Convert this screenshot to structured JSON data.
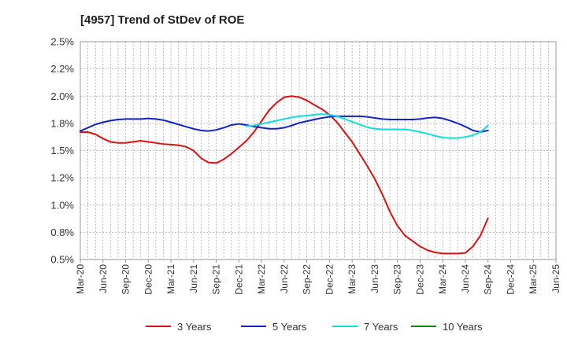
{
  "chart_data": {
    "type": "line",
    "title": "[4957]  Trend of StDev of ROE",
    "xlabel": "",
    "ylabel": "",
    "ylim": [
      0.5,
      2.5
    ],
    "yticks": [
      "0.5%",
      "0.8%",
      "1.0%",
      "1.2%",
      "1.5%",
      "1.8%",
      "2.0%",
      "2.2%",
      "2.5%"
    ],
    "ytick_values": [
      0.5,
      0.75,
      1.0,
      1.25,
      1.5,
      1.75,
      2.0,
      2.25,
      2.5
    ],
    "xticks": [
      "Mar-20",
      "Jun-20",
      "Sep-20",
      "Dec-20",
      "Mar-21",
      "Jun-21",
      "Sep-21",
      "Dec-21",
      "Mar-22",
      "Jun-22",
      "Sep-22",
      "Dec-22",
      "Mar-23",
      "Jun-23",
      "Sep-23",
      "Dec-23",
      "Mar-24",
      "Jun-24",
      "Sep-24",
      "Dec-24",
      "Mar-25",
      "Jun-25"
    ],
    "grid": true,
    "legend_position": "bottom",
    "series": [
      {
        "name": "3 Years",
        "color": "#dd1111",
        "values": [
          1.67,
          1.67,
          1.65,
          1.61,
          1.58,
          1.57,
          1.57,
          1.58,
          1.59,
          1.58,
          1.57,
          1.56,
          1.555,
          1.55,
          1.535,
          1.5,
          1.43,
          1.39,
          1.385,
          1.42,
          1.47,
          1.53,
          1.59,
          1.67,
          1.77,
          1.87,
          1.94,
          1.99,
          2.0,
          1.99,
          1.96,
          1.92,
          1.88,
          1.83,
          1.76,
          1.67,
          1.58,
          1.47,
          1.36,
          1.24,
          1.1,
          0.94,
          0.81,
          0.72,
          0.67,
          0.62,
          0.585,
          0.565,
          0.555,
          0.555,
          0.555,
          0.56,
          0.62,
          0.72,
          0.88
        ]
      },
      {
        "name": "5 Years",
        "color": "#1122cc",
        "values": [
          1.68,
          1.71,
          1.74,
          1.76,
          1.775,
          1.785,
          1.79,
          1.79,
          1.79,
          1.795,
          1.79,
          1.78,
          1.76,
          1.74,
          1.72,
          1.7,
          1.685,
          1.68,
          1.69,
          1.71,
          1.735,
          1.745,
          1.735,
          1.72,
          1.71,
          1.7,
          1.7,
          1.71,
          1.73,
          1.755,
          1.77,
          1.785,
          1.8,
          1.81,
          1.815,
          1.815,
          1.815,
          1.815,
          1.81,
          1.8,
          1.79,
          1.785,
          1.785,
          1.785,
          1.785,
          1.79,
          1.8,
          1.805,
          1.795,
          1.775,
          1.75,
          1.72,
          1.685,
          1.67,
          1.685
        ]
      },
      {
        "name": "7 Years",
        "color": "#11dddd",
        "values": [
          null,
          null,
          null,
          null,
          null,
          null,
          null,
          null,
          null,
          null,
          null,
          null,
          null,
          null,
          null,
          null,
          null,
          null,
          null,
          null,
          null,
          null,
          1.725,
          1.73,
          1.745,
          1.76,
          1.775,
          1.79,
          1.805,
          1.815,
          1.82,
          1.83,
          1.835,
          1.83,
          1.815,
          1.79,
          1.765,
          1.74,
          1.715,
          1.7,
          1.695,
          1.695,
          1.695,
          1.695,
          1.685,
          1.67,
          1.655,
          1.635,
          1.62,
          1.615,
          1.615,
          1.625,
          1.64,
          1.67,
          1.73
        ]
      },
      {
        "name": "10 Years",
        "color": "#118811",
        "values": []
      }
    ]
  }
}
